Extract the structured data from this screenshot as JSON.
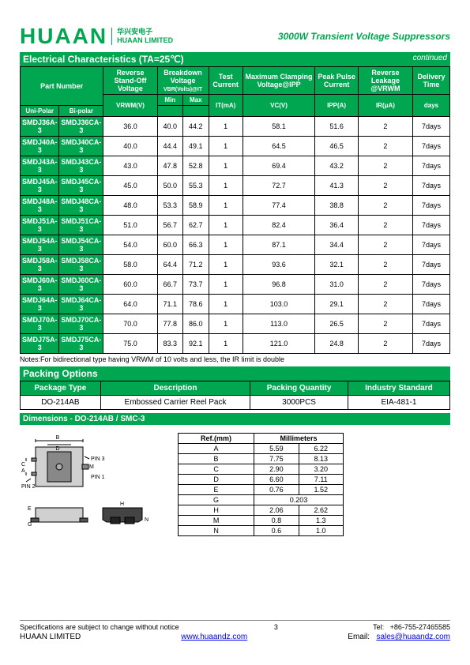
{
  "header": {
    "logo": "HUAAN",
    "logo_cn": "华兴安电子",
    "logo_en": "HUAAN LIMITED",
    "right": "3000W Transient Voltage Suppressors"
  },
  "sec_title": "Electrical    Characteristics    (TA=25℃)",
  "sec_cont": "continued",
  "main_headers": {
    "part": "Part    Number",
    "uni": "Uni-Polar",
    "bi": "Bi-polar",
    "c1": "Reverse Stand-Off Voltage",
    "c2": "Breakdown Voltage",
    "c2s": "VBR(Volts)@IT",
    "c2a": "Min",
    "c2b": "Max",
    "c3": "Test Current",
    "c4": "Maximum Clamping Voltage@IPP",
    "c5": "Peak Pulse Current",
    "c6": "Reverse Leakage @VRWM",
    "c7": "Delivery Time",
    "u1": "VRWM(V)",
    "u3": "IT(mA)",
    "u4": "VC(V)",
    "u5": "IPP(A)",
    "u6": "IR(μA)",
    "u7": "days"
  },
  "rows": [
    {
      "uni": "SMDJ36A-3",
      "bi": "SMDJ36CA-3",
      "v": "36.0",
      "min": "40.0",
      "max": "44.2",
      "it": "1",
      "vc": "58.1",
      "ipp": "51.6",
      "ir": "2",
      "dt": "7days"
    },
    {
      "uni": "SMDJ40A-3",
      "bi": "SMDJ40CA-3",
      "v": "40.0",
      "min": "44.4",
      "max": "49.1",
      "it": "1",
      "vc": "64.5",
      "ipp": "46.5",
      "ir": "2",
      "dt": "7days"
    },
    {
      "uni": "SMDJ43A-3",
      "bi": "SMDJ43CA-3",
      "v": "43.0",
      "min": "47.8",
      "max": "52.8",
      "it": "1",
      "vc": "69.4",
      "ipp": "43.2",
      "ir": "2",
      "dt": "7days"
    },
    {
      "uni": "SMDJ45A-3",
      "bi": "SMDJ45CA-3",
      "v": "45.0",
      "min": "50.0",
      "max": "55.3",
      "it": "1",
      "vc": "72.7",
      "ipp": "41.3",
      "ir": "2",
      "dt": "7days"
    },
    {
      "uni": "SMDJ48A-3",
      "bi": "SMDJ48CA-3",
      "v": "48.0",
      "min": "53.3",
      "max": "58.9",
      "it": "1",
      "vc": "77.4",
      "ipp": "38.8",
      "ir": "2",
      "dt": "7days"
    },
    {
      "uni": "SMDJ51A-3",
      "bi": "SMDJ51CA-3",
      "v": "51.0",
      "min": "56.7",
      "max": "62.7",
      "it": "1",
      "vc": "82.4",
      "ipp": "36.4",
      "ir": "2",
      "dt": "7days"
    },
    {
      "uni": "SMDJ54A-3",
      "bi": "SMDJ54CA-3",
      "v": "54.0",
      "min": "60.0",
      "max": "66.3",
      "it": "1",
      "vc": "87.1",
      "ipp": "34.4",
      "ir": "2",
      "dt": "7days"
    },
    {
      "uni": "SMDJ58A-3",
      "bi": "SMDJ58CA-3",
      "v": "58.0",
      "min": "64.4",
      "max": "71.2",
      "it": "1",
      "vc": "93.6",
      "ipp": "32.1",
      "ir": "2",
      "dt": "7days"
    },
    {
      "uni": "SMDJ60A-3",
      "bi": "SMDJ60CA-3",
      "v": "60.0",
      "min": "66.7",
      "max": "73.7",
      "it": "1",
      "vc": "96.8",
      "ipp": "31.0",
      "ir": "2",
      "dt": "7days"
    },
    {
      "uni": "SMDJ64A-3",
      "bi": "SMDJ64CA-3",
      "v": "64.0",
      "min": "71.1",
      "max": "78.6",
      "it": "1",
      "vc": "103.0",
      "ipp": "29.1",
      "ir": "2",
      "dt": "7days"
    },
    {
      "uni": "SMDJ70A-3",
      "bi": "SMDJ70CA-3",
      "v": "70.0",
      "min": "77.8",
      "max": "86.0",
      "it": "1",
      "vc": "113.0",
      "ipp": "26.5",
      "ir": "2",
      "dt": "7days"
    },
    {
      "uni": "SMDJ75A-3",
      "bi": "SMDJ75CA-3",
      "v": "75.0",
      "min": "83.3",
      "max": "92.1",
      "it": "1",
      "vc": "121.0",
      "ipp": "24.8",
      "ir": "2",
      "dt": "7days"
    }
  ],
  "notes": "Notes:For bidirectional type having VRWM of 10 volts and less, the IR limit is double",
  "pack_title": "Packing Options",
  "pack_h": {
    "a": "Package Type",
    "b": "Description",
    "c": "Packing    Quantity",
    "d": "Industry Standard"
  },
  "pack_r": {
    "a": "DO-214AB",
    "b": "Embossed Carrier Reel Pack",
    "c": "3000PCS",
    "d": "EIA-481-1"
  },
  "dim_title": "Dimensions - DO-214AB / SMC-3",
  "dim_h": {
    "ref": "Ref.(mm)",
    "mm": "Millimeters"
  },
  "dim_rows": [
    {
      "r": "A",
      "a": "5.59",
      "b": "6.22"
    },
    {
      "r": "B",
      "a": "7.75",
      "b": "8.13"
    },
    {
      "r": "C",
      "a": "2.90",
      "b": "3.20"
    },
    {
      "r": "D",
      "a": "6.60",
      "b": "7.11"
    },
    {
      "r": "E",
      "a": "0.76",
      "b": "1.52"
    },
    {
      "r": "G",
      "a": "0.203",
      "b": ""
    },
    {
      "r": "H",
      "a": "2.06",
      "b": "2.62"
    },
    {
      "r": "M",
      "a": "0.8",
      "b": "1.3"
    },
    {
      "r": "N",
      "a": "0.6",
      "b": "1.0"
    }
  ],
  "foot": {
    "spec": "Specifications are subject to change without notice",
    "pg": "3",
    "tel_l": "Tel:",
    "tel": "+86-755-27465585",
    "company": "HUAAN LIMITED",
    "web": "www.huaandz.com",
    "email_l": "Email:",
    "email": "sales@huaandz.com"
  },
  "diagram": {
    "labels": {
      "b": "B",
      "d": "D",
      "a": "A",
      "c": "C",
      "e": "E",
      "g": "G",
      "h": "H",
      "m": "M",
      "n": "N",
      "pin3": "PIN 3",
      "pin1": "PIN 1",
      "pin2": "PIN 2"
    }
  }
}
